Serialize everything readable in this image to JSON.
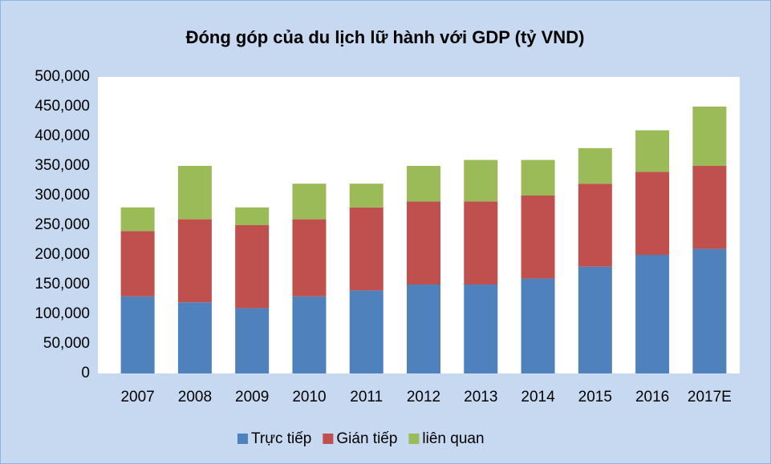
{
  "chart_data": {
    "type": "bar",
    "stacked": true,
    "title": "Đóng góp của du lịch lữ hành với GDP (tỷ VND)",
    "categories": [
      "2007",
      "2008",
      "2009",
      "2010",
      "2011",
      "2012",
      "2013",
      "2014",
      "2015",
      "2016",
      "2017E"
    ],
    "series": [
      {
        "name": "Trực tiếp",
        "color": "#4f81bd",
        "values": [
          130000,
          120000,
          110000,
          130000,
          140000,
          150000,
          150000,
          160000,
          180000,
          200000,
          210000
        ]
      },
      {
        "name": "Gián tiếp",
        "color": "#c0504d",
        "values": [
          110000,
          140000,
          140000,
          130000,
          140000,
          140000,
          140000,
          140000,
          140000,
          140000,
          140000
        ]
      },
      {
        "name": "liên quan",
        "color": "#9bbb59",
        "values": [
          40000,
          90000,
          30000,
          60000,
          40000,
          60000,
          70000,
          60000,
          60000,
          70000,
          100000
        ]
      }
    ],
    "ylim": [
      0,
      500000
    ],
    "yticks": [
      0,
      {
        "value": 50000,
        "label": "50,000"
      },
      {
        "value": 100000,
        "label": "100,000"
      },
      {
        "value": 150000,
        "label": "150,000"
      },
      {
        "value": 200000,
        "label": "200,000"
      },
      {
        "value": 250000,
        "label": "250,000"
      },
      {
        "value": 300000,
        "label": "300,000"
      },
      {
        "value": 350000,
        "label": "350,000"
      },
      {
        "value": 400000,
        "label": "400,000"
      },
      {
        "value": 450000,
        "label": "450,000"
      },
      {
        "value": 500000,
        "label": "500,000"
      }
    ],
    "grid": false,
    "legend": "bottom"
  }
}
